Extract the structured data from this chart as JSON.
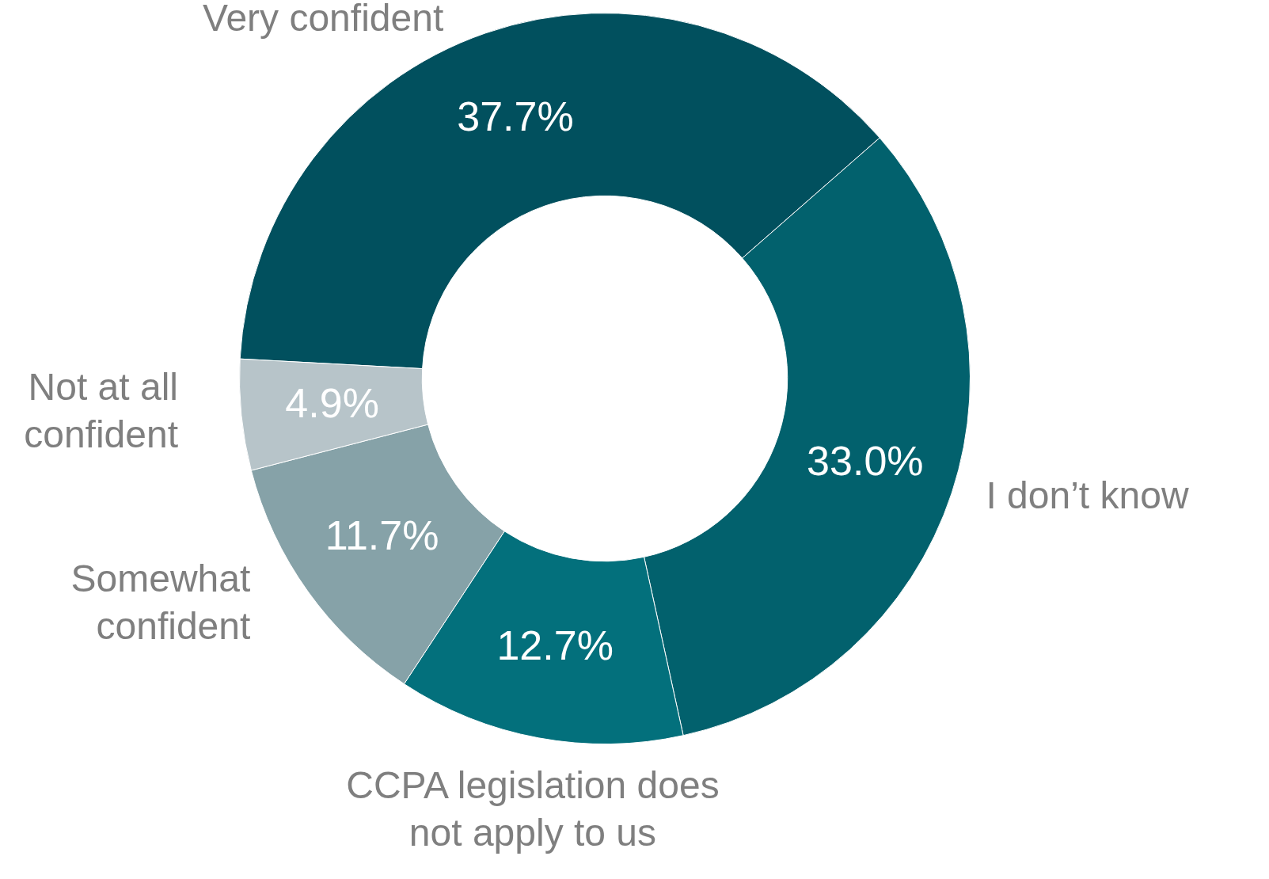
{
  "chart_data": {
    "type": "donut",
    "categories": [
      "Very confident",
      "I don’t know",
      "CCPA legislation does not apply to us",
      "Somewhat confident",
      "Not at all confident"
    ],
    "values": [
      37.7,
      33.0,
      12.7,
      11.7,
      4.9
    ],
    "colors": [
      "#01505e",
      "#02616d",
      "#03707c",
      "#86a2a8",
      "#b7c4c9"
    ],
    "value_labels": [
      "37.7%",
      "33.0%",
      "12.7%",
      "11.7%",
      "4.9%"
    ]
  }
}
